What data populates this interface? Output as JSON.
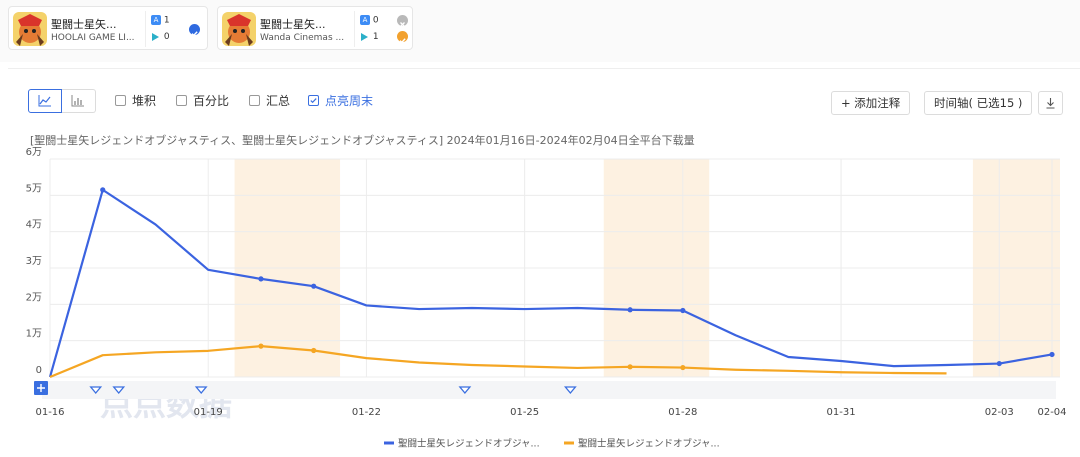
{
  "apps": [
    {
      "name": "聖闘士星矢...",
      "developer": "HOOLAI GAME LI...",
      "ios_rank": "1",
      "gp_rank": "0",
      "selected": true,
      "status_color": "#2f6ae0"
    },
    {
      "name": "聖闘士星矢...",
      "developer": "Wanda Cinemas ...",
      "ios_rank": "0",
      "gp_rank": "1",
      "selected": false,
      "status_color": "#f2a12e"
    }
  ],
  "toolbar": {
    "options": [
      {
        "label": "堆积",
        "checked": false
      },
      {
        "label": "百分比",
        "checked": false
      },
      {
        "label": "汇总",
        "checked": false
      },
      {
        "label": "点亮周末",
        "checked": true
      }
    ],
    "add_annotation": "+ 添加注释",
    "timeline": "时间轴( 已选15 )"
  },
  "chart_title": "[聖闘士星矢レジェンドオブジャスティス、聖闘士星矢レジェンドオブジャスティス] 2024年01月16日-2024年02月04日全平台下载量",
  "watermark": "点点数据",
  "chart_data": {
    "type": "line",
    "title": "[聖闘士星矢レジェンドオブジャスティス、聖闘士星矢レジェンドオブジャスティス] 2024年01月16日-2024年02月04日全平台下载量",
    "x": [
      "01-16",
      "01-17",
      "01-18",
      "01-19",
      "01-20",
      "01-21",
      "01-22",
      "01-23",
      "01-24",
      "01-25",
      "01-26",
      "01-27",
      "01-28",
      "01-29",
      "01-30",
      "01-31",
      "02-01",
      "02-02",
      "02-03",
      "02-04"
    ],
    "x_tick_labels": [
      "01-16",
      "01-19",
      "01-22",
      "01-25",
      "01-28",
      "01-31",
      "02-03",
      "02-04"
    ],
    "y_tick_labels": [
      "0",
      "1万",
      "2万",
      "3万",
      "4万",
      "5万",
      "6万"
    ],
    "ylim": [
      0,
      60000
    ],
    "series": [
      {
        "name": "聖闘士星矢レジェンドオブジャ...",
        "color": "#3b63e0",
        "values": [
          0,
          51500,
          42000,
          29500,
          27000,
          25000,
          19700,
          18700,
          19000,
          18700,
          19000,
          18500,
          18300,
          11500,
          5500,
          4400,
          3000,
          3300,
          3700,
          6200
        ],
        "marked_points": [
          "01-17",
          "01-20",
          "01-21",
          "01-27",
          "01-28",
          "02-03",
          "02-04"
        ]
      },
      {
        "name": "聖闘士星矢レジェンドオブジャ...",
        "color": "#f5a623",
        "values": [
          0,
          6000,
          6800,
          7200,
          8500,
          7300,
          5200,
          4000,
          3300,
          2900,
          2500,
          2800,
          2600,
          2000,
          1700,
          1300,
          1100,
          1000,
          null,
          null
        ],
        "marked_points": [
          "01-20",
          "01-21",
          "01-27",
          "01-28"
        ]
      }
    ],
    "highlighted_weekends": [
      [
        "01-20",
        "01-21"
      ],
      [
        "01-27",
        "01-28"
      ],
      [
        "02-03",
        "02-04"
      ]
    ],
    "annotation_markers": [
      "01-17",
      "01-17",
      "01-19",
      "01-24",
      "01-26"
    ],
    "legend_position": "bottom",
    "grid": true
  }
}
